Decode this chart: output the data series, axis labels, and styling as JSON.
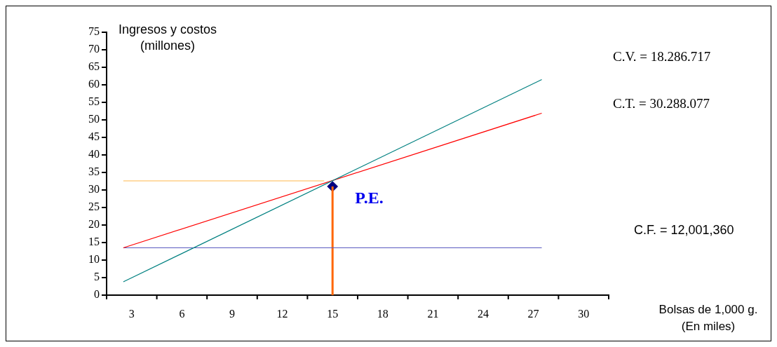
{
  "chart_data": {
    "type": "line",
    "xlabel": "Bolsas de 1,000 g. (En miles)",
    "ylabel": "Ingresos y costos (millones)",
    "xlim": [
      1.5,
      31.5
    ],
    "xticks": [
      3,
      6,
      9,
      12,
      15,
      18,
      21,
      24,
      27,
      30
    ],
    "ylim": [
      0,
      75
    ],
    "yticks": [
      0,
      5,
      10,
      15,
      20,
      25,
      30,
      35,
      40,
      45,
      50,
      55,
      60,
      65,
      70,
      75
    ],
    "grid": false,
    "legend": false,
    "marker": "none",
    "line_style": "solid",
    "series": [
      {
        "color": "#008080",
        "x": [
          2.5,
          27.5
        ],
        "values": [
          3.8,
          61.5
        ]
      },
      {
        "color": "#ff0000",
        "x": [
          2.5,
          27.5
        ],
        "values": [
          13.5,
          51.9
        ]
      },
      {
        "color": "#5a5ac0",
        "x": [
          2.5,
          27.5
        ],
        "values": [
          13.5,
          13.5
        ]
      },
      {
        "color": "#ffb84d",
        "x": [
          2.5,
          14.5
        ],
        "values": [
          32.6,
          32.6
        ]
      },
      {
        "color": "#ff6600",
        "x": [
          15,
          15
        ],
        "values": [
          0,
          31
        ]
      },
      {
        "type": "scatter",
        "color": "#000080",
        "marker": "diamond",
        "x": [
          15
        ],
        "values": [
          31
        ]
      }
    ],
    "annotations": [
      "C.V. = 18.286.717",
      "C.T. = 30.288.077",
      "C.F. = 12,001,360",
      {
        "text": "P.E.",
        "x": 15,
        "y": 31
      }
    ]
  }
}
